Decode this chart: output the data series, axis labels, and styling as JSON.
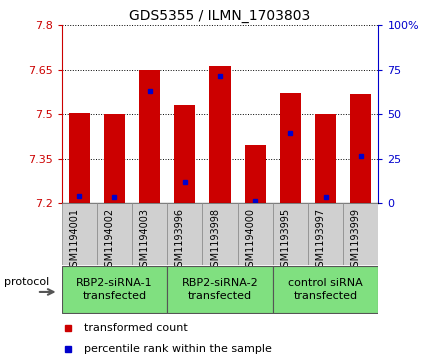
{
  "title": "GDS5355 / ILMN_1703803",
  "samples": [
    "GSM1194001",
    "GSM1194002",
    "GSM1194003",
    "GSM1193996",
    "GSM1193998",
    "GSM1194000",
    "GSM1193995",
    "GSM1193997",
    "GSM1193999"
  ],
  "red_bar_tops": [
    7.503,
    7.501,
    7.651,
    7.533,
    7.663,
    7.397,
    7.572,
    7.5,
    7.568
  ],
  "blue_dot_values": [
    7.223,
    7.222,
    7.578,
    7.272,
    7.63,
    7.207,
    7.438,
    7.221,
    7.358
  ],
  "y_min": 7.2,
  "y_max": 7.8,
  "y_ticks": [
    7.2,
    7.35,
    7.5,
    7.65,
    7.8
  ],
  "y_tick_labels": [
    "7.2",
    "7.35",
    "7.5",
    "7.65",
    "7.8"
  ],
  "y2_ticks": [
    0,
    25,
    50,
    75,
    100
  ],
  "y2_tick_labels": [
    "0",
    "25",
    "50",
    "75",
    "100%"
  ],
  "groups": [
    {
      "label": "RBP2-siRNA-1\ntransfected",
      "start": 0,
      "end": 2
    },
    {
      "label": "RBP2-siRNA-2\ntransfected",
      "start": 3,
      "end": 5
    },
    {
      "label": "control siRNA\ntransfected",
      "start": 6,
      "end": 8
    }
  ],
  "bar_color": "#cc0000",
  "dot_color": "#0000cc",
  "bar_width": 0.6,
  "sample_box_color": "#d0d0d0",
  "group_box_color": "#80e080",
  "plot_bg": "#ffffff",
  "left_axis_color": "#cc0000",
  "right_axis_color": "#0000cc",
  "legend_red_label": "transformed count",
  "legend_blue_label": "percentile rank within the sample",
  "protocol_label": "protocol",
  "title_fontsize": 10,
  "tick_fontsize": 8,
  "label_fontsize": 7,
  "group_fontsize": 8
}
